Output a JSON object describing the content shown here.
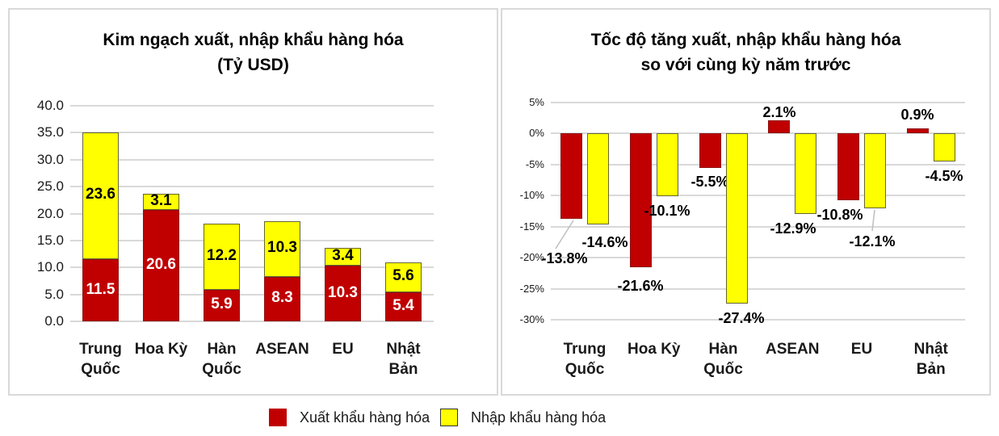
{
  "colors": {
    "export_red": "#C00000",
    "import_yellow": "#FFFF00",
    "gridline": "#D9D9D9",
    "panel_border": "#D9D9D9",
    "leader_line": "#BFBFBF",
    "red_label_text": "#FFFFFF",
    "yellow_label_text": "#000000"
  },
  "chart_data": [
    {
      "type": "bar",
      "subtype": "stacked",
      "title": "Kim ngạch xuất, nhập khẩu hàng hóa",
      "subtitle": "(Tỷ USD)",
      "categories": [
        "Trung Quốc",
        "Hoa Kỳ",
        "Hàn Quốc",
        "ASEAN",
        "EU",
        "Nhật Bản"
      ],
      "series": [
        {
          "name": "Xuất khẩu hàng hóa",
          "color": "#C00000",
          "values": [
            11.5,
            20.6,
            5.9,
            8.3,
            10.3,
            5.4
          ],
          "labels": [
            "11.5",
            "20.6",
            "5.9",
            "8.3",
            "10.3",
            "5.4"
          ]
        },
        {
          "name": "Nhập khẩu hàng hóa",
          "color": "#FFFF00",
          "values": [
            23.6,
            3.1,
            12.2,
            10.3,
            3.4,
            5.6
          ],
          "labels": [
            "23.6",
            "3.1",
            "12.2",
            "10.3",
            "3.4",
            "5.6"
          ]
        }
      ],
      "ylim": [
        0,
        40
      ],
      "ytick_step": 5,
      "yticks": [
        "40.0",
        "35.0",
        "30.0",
        "25.0",
        "20.0",
        "15.0",
        "10.0",
        "5.0",
        "0.0"
      ],
      "grid": true,
      "legend_position": "bottom-shared"
    },
    {
      "type": "bar",
      "subtype": "grouped",
      "title": "Tốc độ tăng xuất, nhập khẩu hàng hóa",
      "subtitle": "so với cùng kỳ năm trước",
      "categories": [
        "Trung Quốc",
        "Hoa Kỳ",
        "Hàn Quốc",
        "ASEAN",
        "EU",
        "Nhật Bản"
      ],
      "series": [
        {
          "name": "Xuất khẩu hàng hóa",
          "color": "#C00000",
          "values": [
            -13.8,
            -21.6,
            -5.5,
            2.1,
            -10.8,
            0.9
          ],
          "labels": [
            "-13.8%",
            "-21.6%",
            "-5.5%",
            "2.1%",
            "-10.8%",
            "0.9%"
          ]
        },
        {
          "name": "Nhập khẩu hàng hóa",
          "color": "#FFFF00",
          "values": [
            -14.6,
            -10.1,
            -27.4,
            -12.9,
            -12.1,
            -4.5
          ],
          "labels": [
            "-14.6%",
            "-10.1%",
            "-27.4%",
            "-12.9%",
            "-12.1%",
            "-4.5%"
          ]
        }
      ],
      "ylim": [
        -30,
        5
      ],
      "ytick_step": 5,
      "yticks": [
        "5%",
        "0%",
        "-5%",
        "-10%",
        "-15%",
        "-20%",
        "-25%",
        "-30%"
      ],
      "grid": true,
      "callouts": [
        "-13.8%",
        "-12.1%"
      ],
      "legend_position": "bottom-shared"
    }
  ],
  "legend": {
    "items": [
      {
        "label": "Xuất khẩu hàng hóa",
        "color": "#C00000"
      },
      {
        "label": "Nhập khẩu hàng hóa",
        "color": "#FFFF00"
      }
    ]
  }
}
